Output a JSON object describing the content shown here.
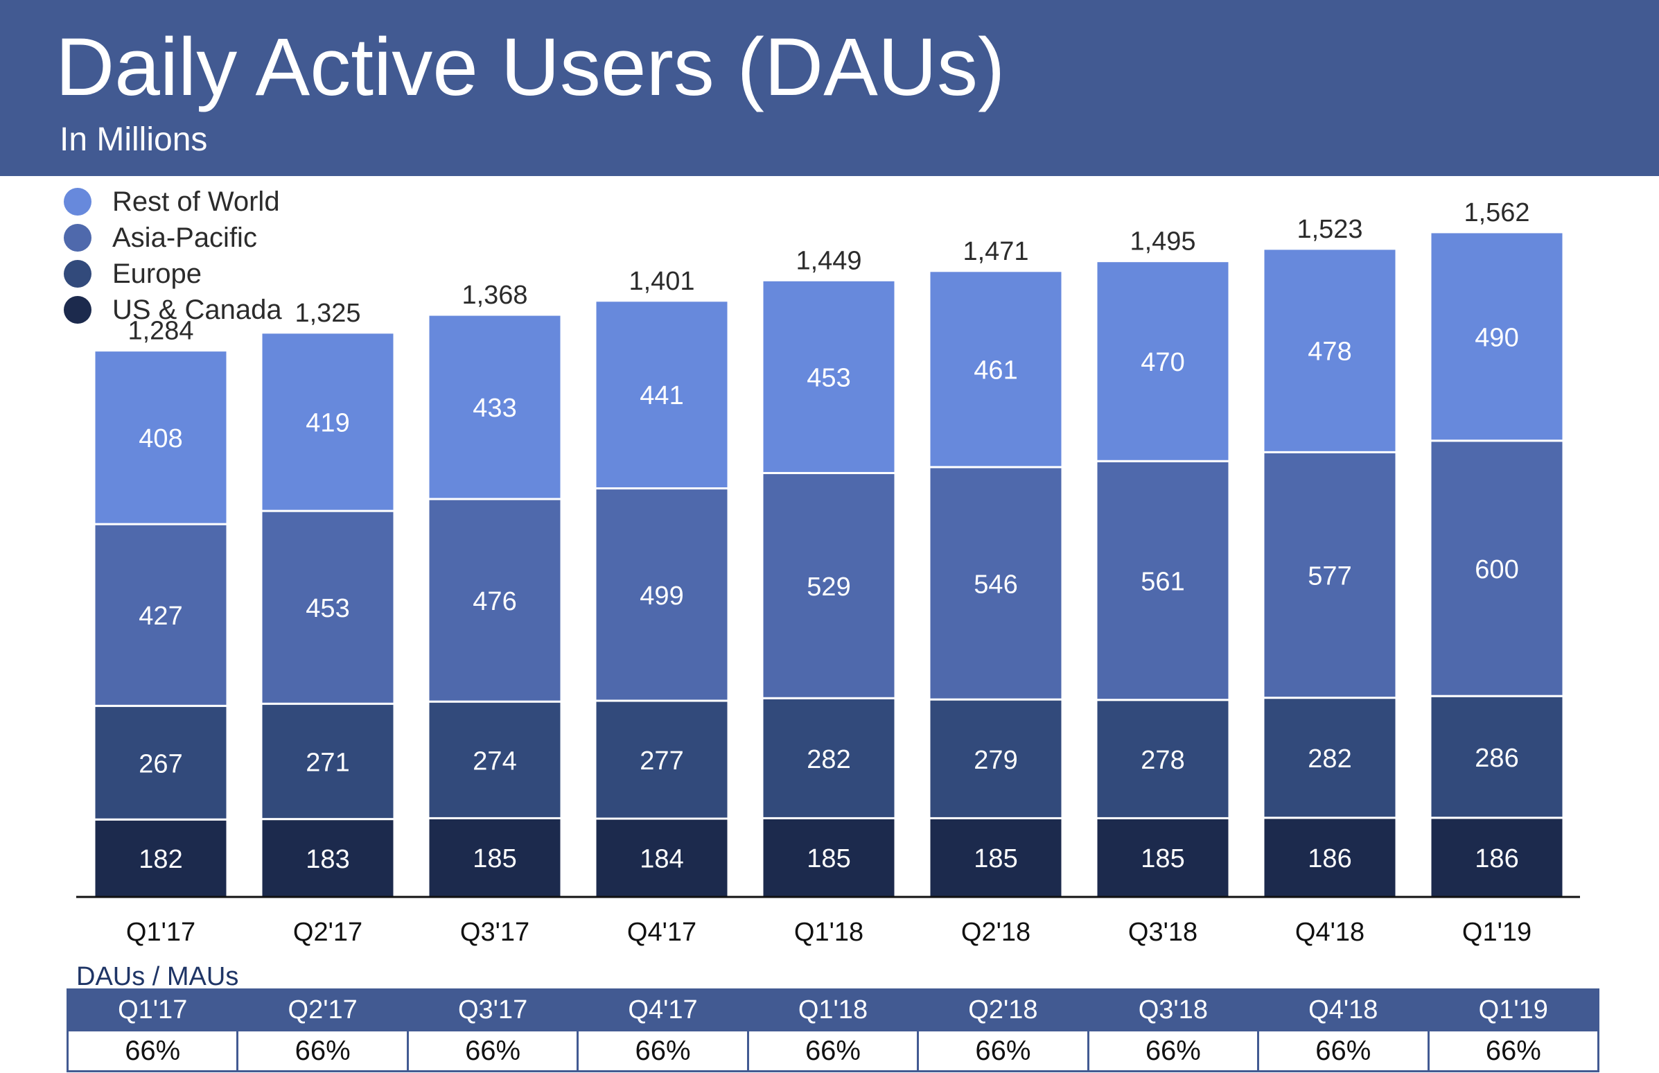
{
  "header": {
    "title": "Daily Active Users (DAUs)",
    "subtitle": "In Millions"
  },
  "colors": {
    "header_bg": "#425a92",
    "rest_of_world": "#6789dc",
    "asia_pacific": "#4f69ac",
    "europe": "#324a7b",
    "us_canada": "#1c2a4d",
    "axis": "#111111"
  },
  "legend": [
    {
      "label": "Rest of World",
      "color": "#6789dc"
    },
    {
      "label": "Asia-Pacific",
      "color": "#4f69ac"
    },
    {
      "label": "Europe",
      "color": "#324a7b"
    },
    {
      "label": "US & Canada",
      "color": "#1c2a4d"
    }
  ],
  "chart_data": {
    "type": "bar",
    "stacked": true,
    "title": "Daily Active Users (DAUs)",
    "subtitle": "In Millions",
    "categories": [
      "Q1'17",
      "Q2'17",
      "Q3'17",
      "Q4'17",
      "Q1'18",
      "Q2'18",
      "Q3'18",
      "Q4'18",
      "Q1'19"
    ],
    "series": [
      {
        "name": "US & Canada",
        "color": "#1c2a4d",
        "values": [
          182,
          183,
          185,
          184,
          185,
          185,
          185,
          186,
          186
        ]
      },
      {
        "name": "Europe",
        "color": "#324a7b",
        "values": [
          267,
          271,
          274,
          277,
          282,
          279,
          278,
          282,
          286
        ]
      },
      {
        "name": "Asia-Pacific",
        "color": "#4f69ac",
        "values": [
          427,
          453,
          476,
          499,
          529,
          546,
          561,
          577,
          600
        ]
      },
      {
        "name": "Rest of World",
        "color": "#6789dc",
        "values": [
          408,
          419,
          433,
          441,
          453,
          461,
          470,
          478,
          490
        ]
      }
    ],
    "totals": [
      "1,284",
      "1,325",
      "1,368",
      "1,401",
      "1,449",
      "1,471",
      "1,495",
      "1,523",
      "1,562"
    ],
    "ylim": [
      0,
      1600
    ],
    "grid": false,
    "legend_position": "top-left"
  },
  "ratio_table": {
    "caption": "DAUs / MAUs",
    "quarters": [
      "Q1'17",
      "Q2'17",
      "Q3'17",
      "Q4'17",
      "Q1'18",
      "Q2'18",
      "Q3'18",
      "Q4'18",
      "Q1'19"
    ],
    "values": [
      "66%",
      "66%",
      "66%",
      "66%",
      "66%",
      "66%",
      "66%",
      "66%",
      "66%"
    ]
  }
}
